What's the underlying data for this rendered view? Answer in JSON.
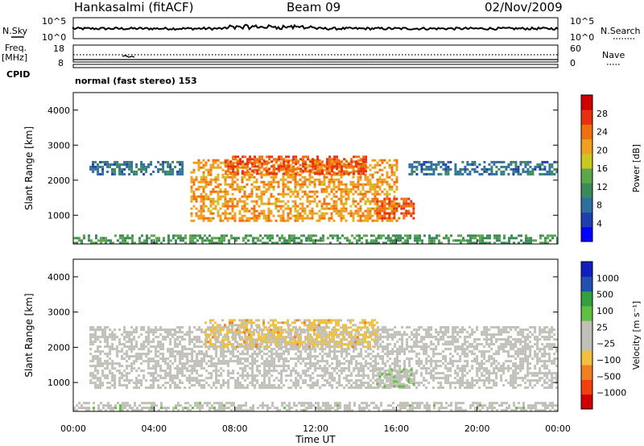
{
  "header": {
    "station": "Hankasalmi (fitACF)",
    "beam": "Beam 09",
    "date": "02/Nov/2009"
  },
  "strips": {
    "nsky_label": "N.Sky",
    "nsearch_label": "N.Search",
    "noise_ticks_left": [
      "10^5",
      "10^0"
    ],
    "noise_ticks_right": [
      "10^5",
      "10^0"
    ],
    "freq_label_top": "Freq.",
    "freq_label_unit": "[MHz]",
    "freq_ticks": [
      "18",
      "8"
    ],
    "nave_label": "Nave",
    "nave_ticks": [
      "60",
      "0"
    ],
    "cpid_label": "CPID",
    "cpid_text": "normal (fast stereo) 153"
  },
  "chart_data": [
    {
      "type": "heatmap",
      "name": "power-panel",
      "ylabel": "Slant Range [km]",
      "xlabel": "Time UT",
      "xlim": [
        0,
        24
      ],
      "ylim": [
        180,
        4500
      ],
      "x_ticks": [
        "00:00",
        "04:00",
        "08:00",
        "12:00",
        "16:00",
        "20:00",
        "00:00"
      ],
      "y_ticks": [
        1000,
        2000,
        3000,
        4000
      ],
      "colorbar": {
        "label": "Power [dB]",
        "ticks": [
          "28",
          "24",
          "20",
          "16",
          "12",
          "8",
          "4"
        ],
        "range": [
          0,
          30
        ],
        "colors": [
          "#0000ff",
          "#1e3fb0",
          "#2f6ea0",
          "#3a8a5a",
          "#5aa84a",
          "#c8c820",
          "#f0a020",
          "#f07010",
          "#e83010",
          "#d00000"
        ]
      },
      "regions": [
        {
          "desc": "ground-scatter band near 2300 km (left)",
          "t": [
            0.8,
            5.4
          ],
          "r": [
            2150,
            2550
          ],
          "level": 8
        },
        {
          "desc": "ground-scatter band near 2300 km (right)",
          "t": [
            16.6,
            24
          ],
          "r": [
            2150,
            2550
          ],
          "level": 8
        },
        {
          "desc": "main echo arc",
          "t": [
            5.8,
            16.0
          ],
          "r": [
            850,
            2600
          ],
          "level": 20
        },
        {
          "desc": "upper echo layer",
          "t": [
            7.5,
            14.5
          ],
          "r": [
            2200,
            2700
          ],
          "level": 24
        },
        {
          "desc": "late-afternoon echo patch",
          "t": [
            15.0,
            16.8
          ],
          "r": [
            900,
            1500
          ],
          "level": 24
        },
        {
          "desc": "near-range clutter",
          "t": [
            0,
            24
          ],
          "r": [
            180,
            450
          ],
          "level": 12
        }
      ]
    },
    {
      "type": "heatmap",
      "name": "velocity-panel",
      "ylabel": "Slant Range [km]",
      "xlabel": "Time UT",
      "xlim": [
        0,
        24
      ],
      "ylim": [
        180,
        4500
      ],
      "x_ticks": [
        "00:00",
        "04:00",
        "08:00",
        "12:00",
        "16:00",
        "20:00",
        "00:00"
      ],
      "y_ticks": [
        1000,
        2000,
        3000,
        4000
      ],
      "colorbar": {
        "label": "Velocity [m s⁻¹]",
        "ticks": [
          "1000",
          "500",
          "100",
          "25",
          "−25",
          "−100",
          "−500",
          "−1000"
        ],
        "range": [
          -1200,
          1200
        ],
        "colors": [
          "#d00000",
          "#f04010",
          "#f08020",
          "#f0c040",
          "#c0c0b8",
          "#c0c0b8",
          "#60c040",
          "#30a040",
          "#2050b0",
          "#1020c0"
        ]
      },
      "regions": [
        {
          "desc": "ground scatter (grey)",
          "t": [
            0.8,
            24
          ],
          "r": [
            850,
            2600
          ],
          "level": 0
        },
        {
          "desc": "negative-velocity upper band",
          "t": [
            6.5,
            15.0
          ],
          "r": [
            2000,
            2800
          ],
          "level": -300
        },
        {
          "desc": "positive-velocity patch",
          "t": [
            15.0,
            16.8
          ],
          "r": [
            900,
            1400
          ],
          "level": 150
        },
        {
          "desc": "near-range clutter",
          "t": [
            0,
            24
          ],
          "r": [
            180,
            450
          ],
          "level": 50
        }
      ]
    }
  ]
}
